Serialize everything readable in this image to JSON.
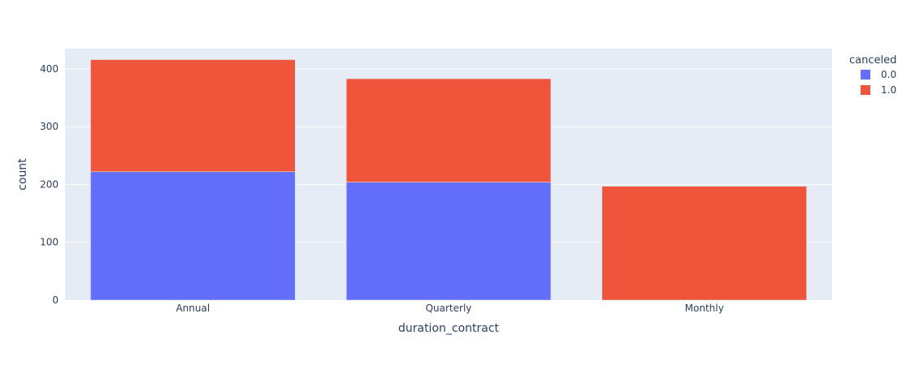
{
  "chart_data": {
    "type": "bar",
    "barmode": "stack",
    "categories": [
      "Annual",
      "Quarterly",
      "Monthly"
    ],
    "series": [
      {
        "name": "0.0",
        "values": [
          222,
          204,
          0
        ],
        "color": "#636efa"
      },
      {
        "name": "1.0",
        "values": [
          194,
          179,
          197
        ],
        "color": "#ef553b"
      }
    ],
    "xlabel": "duration_contract",
    "ylabel": "count",
    "ylim": [
      0,
      435
    ],
    "yticks": [
      0,
      100,
      200,
      300,
      400
    ],
    "grid": true,
    "legend_title": "canceled",
    "legend_placement": "top-right",
    "plot_background": "#e5ecf6",
    "gridline_color": "#ffffff"
  }
}
